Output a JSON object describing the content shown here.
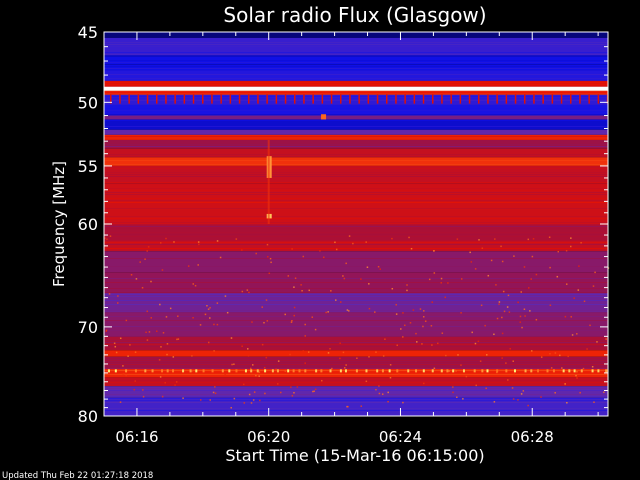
{
  "chart_data": {
    "type": "heatmap",
    "title": "Solar radio Flux (Glasgow)",
    "xlabel": "Start Time (15-Mar-16 06:15:00)",
    "ylabel": "Frequency [MHz]",
    "footer": "Updated Thu Feb 22 01:27:18 2018",
    "x_unit": "minutes after 06:15:00",
    "xlim": [
      0,
      15.3
    ],
    "x_ticks": [
      {
        "value": 1,
        "label": "06:16"
      },
      {
        "value": 5,
        "label": "06:20"
      },
      {
        "value": 9,
        "label": "06:24"
      },
      {
        "value": 13,
        "label": "06:28"
      }
    ],
    "yscale": "log",
    "ylim": [
      45,
      80
    ],
    "y_ticks": [
      {
        "value": 45,
        "label": "45"
      },
      {
        "value": 50,
        "label": "50"
      },
      {
        "value": 55,
        "label": "55"
      },
      {
        "value": 60,
        "label": "60"
      },
      {
        "value": 70,
        "label": "70"
      },
      {
        "value": 80,
        "label": "80"
      }
    ],
    "colormap": [
      "#000040",
      "#1010e8",
      "#5a2ab8",
      "#a01040",
      "#e81000",
      "#ff7020",
      "#ffff80",
      "#ffffff"
    ],
    "bands": [
      {
        "f0": 45.0,
        "f1": 45.4,
        "level": 0.05
      },
      {
        "f0": 45.4,
        "f1": 46.6,
        "level": 0.22
      },
      {
        "f0": 46.6,
        "f1": 47.7,
        "level": 0.14
      },
      {
        "f0": 47.7,
        "f1": 48.4,
        "level": 0.18
      },
      {
        "f0": 48.4,
        "f1": 48.8,
        "level": 0.55
      },
      {
        "f0": 48.8,
        "f1": 49.1,
        "level": 1.0
      },
      {
        "f0": 49.1,
        "f1": 49.4,
        "level": 0.6
      },
      {
        "f0": 49.4,
        "f1": 50.2,
        "level": 0.2
      },
      {
        "f0": 50.2,
        "f1": 51.0,
        "level": 0.16
      },
      {
        "f0": 51.0,
        "f1": 51.3,
        "level": 0.35
      },
      {
        "f0": 51.3,
        "f1": 52.1,
        "level": 0.12
      },
      {
        "f0": 52.1,
        "f1": 52.5,
        "level": 0.3
      },
      {
        "f0": 52.5,
        "f1": 52.9,
        "level": 0.6
      },
      {
        "f0": 52.9,
        "f1": 53.6,
        "level": 0.42
      },
      {
        "f0": 53.6,
        "f1": 54.3,
        "level": 0.5
      },
      {
        "f0": 54.3,
        "f1": 55.0,
        "level": 0.62
      },
      {
        "f0": 55.0,
        "f1": 56.5,
        "level": 0.5
      },
      {
        "f0": 56.5,
        "f1": 60.0,
        "level": 0.52
      },
      {
        "f0": 60.0,
        "f1": 61.5,
        "level": 0.45
      },
      {
        "f0": 61.5,
        "f1": 62.5,
        "level": 0.5
      },
      {
        "f0": 62.5,
        "f1": 64.5,
        "level": 0.38
      },
      {
        "f0": 64.5,
        "f1": 66.5,
        "level": 0.4
      },
      {
        "f0": 66.5,
        "f1": 68.5,
        "level": 0.33
      },
      {
        "f0": 68.5,
        "f1": 71.0,
        "level": 0.38
      },
      {
        "f0": 71.0,
        "f1": 72.5,
        "level": 0.45
      },
      {
        "f0": 72.5,
        "f1": 73.2,
        "level": 0.6
      },
      {
        "f0": 73.2,
        "f1": 74.5,
        "level": 0.42
      },
      {
        "f0": 74.5,
        "f1": 75.5,
        "level": 0.6
      },
      {
        "f0": 75.5,
        "f1": 76.5,
        "level": 0.5
      },
      {
        "f0": 76.5,
        "f1": 77.8,
        "level": 0.3
      },
      {
        "f0": 77.8,
        "f1": 80.0,
        "level": 0.24
      }
    ],
    "events": [
      {
        "t": 5.0,
        "f0": 54.2,
        "f1": 56.0,
        "level": 0.75
      },
      {
        "t": 5.0,
        "f0": 59.1,
        "f1": 59.5,
        "level": 0.8
      },
      {
        "t": 6.65,
        "f0": 50.9,
        "f1": 51.3,
        "level": 0.7
      }
    ]
  }
}
